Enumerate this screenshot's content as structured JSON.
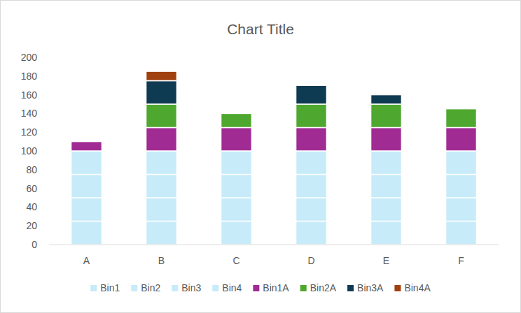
{
  "chart_data": {
    "type": "bar",
    "title": "Chart Title",
    "stacked": true,
    "grid": false,
    "legend": "bottom",
    "categories": [
      "A",
      "B",
      "C",
      "D",
      "E",
      "F"
    ],
    "ylim": [
      0,
      200
    ],
    "yticks": [
      0,
      20,
      40,
      60,
      80,
      100,
      120,
      140,
      160,
      180,
      200
    ],
    "series": [
      {
        "name": "Bin1",
        "color": "#c7ebf8",
        "values": [
          25,
          25,
          25,
          25,
          25,
          25
        ]
      },
      {
        "name": "Bin2",
        "color": "#c7ebf8",
        "values": [
          25,
          25,
          25,
          25,
          25,
          25
        ]
      },
      {
        "name": "Bin3",
        "color": "#c7ebf8",
        "values": [
          25,
          25,
          25,
          25,
          25,
          25
        ]
      },
      {
        "name": "Bin4",
        "color": "#c7ebf8",
        "values": [
          25,
          25,
          25,
          25,
          25,
          25
        ]
      },
      {
        "name": "Bin1A",
        "color": "#a02b93",
        "values": [
          10,
          25,
          25,
          25,
          25,
          25
        ]
      },
      {
        "name": "Bin2A",
        "color": "#4ea72e",
        "values": [
          0,
          25,
          15,
          25,
          25,
          20
        ]
      },
      {
        "name": "Bin3A",
        "color": "#0e3a52",
        "values": [
          0,
          25,
          0,
          20,
          10,
          0
        ]
      },
      {
        "name": "Bin4A",
        "color": "#a0400f",
        "values": [
          0,
          10,
          0,
          0,
          0,
          0
        ]
      }
    ]
  }
}
